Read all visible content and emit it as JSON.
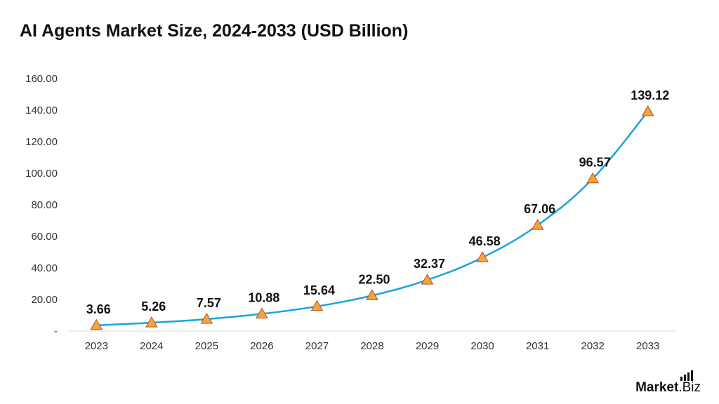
{
  "title": "AI Agents Market Size, 2024-2033 (USD Billion)",
  "brand": {
    "name_main": "Market",
    "name_suffix": ".Biz"
  },
  "colors": {
    "line": "#1ba3dd",
    "marker_fill": "#f5a33c",
    "marker_stroke": "#b5541c",
    "grid_axis": "#d9d9d9",
    "text": "#111111"
  },
  "chart_data": {
    "type": "line",
    "title": "AI Agents Market Size, 2024-2033 (USD Billion)",
    "categories": [
      "2023",
      "2024",
      "2025",
      "2026",
      "2027",
      "2028",
      "2029",
      "2030",
      "2031",
      "2032",
      "2033"
    ],
    "series": [
      {
        "name": "",
        "values": [
          3.66,
          5.26,
          7.57,
          10.88,
          15.64,
          22.5,
          32.37,
          46.58,
          67.06,
          96.57,
          139.12
        ],
        "labels": [
          "3.66",
          "5.26",
          "7.57",
          "10.88",
          "15.64",
          "22.50",
          "32.37",
          "46.58",
          "67.06",
          "96.57",
          "139.12"
        ],
        "marker": "triangle"
      }
    ],
    "ylim": [
      0,
      160
    ],
    "yticks": [
      0,
      20,
      40,
      60,
      80,
      100,
      120,
      140,
      160
    ],
    "ytick_labels": [
      "-",
      "20.00",
      "40.00",
      "60.00",
      "80.00",
      "100.00",
      "120.00",
      "140.00",
      "160.00"
    ],
    "xlabel": "",
    "ylabel": "",
    "grid": false,
    "legend": "none"
  }
}
